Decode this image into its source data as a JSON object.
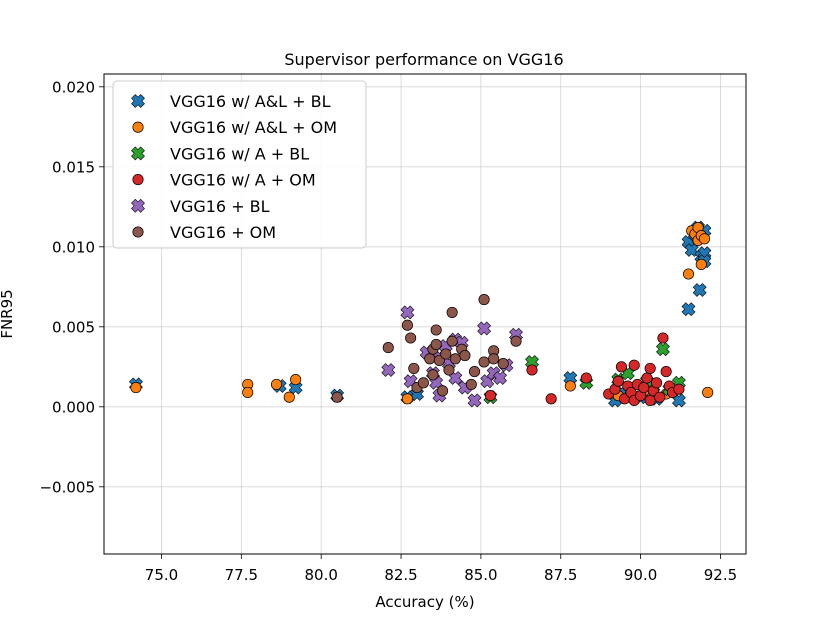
{
  "chart_data": {
    "type": "scatter",
    "title": "Supervisor performance on VGG16",
    "xlabel": "Accuracy (%)",
    "ylabel": "FNR95",
    "xlim": [
      73.2,
      93.3
    ],
    "ylim": [
      -0.0092,
      0.0208
    ],
    "xticks": [
      75.0,
      77.5,
      80.0,
      82.5,
      85.0,
      87.5,
      90.0,
      92.5
    ],
    "xtick_labels": [
      "75.0",
      "77.5",
      "80.0",
      "82.5",
      "85.0",
      "87.5",
      "90.0",
      "92.5"
    ],
    "yticks": [
      -0.005,
      0.0,
      0.005,
      0.01,
      0.015,
      0.02
    ],
    "ytick_labels": [
      "−0.005",
      "0.000",
      "0.005",
      "0.010",
      "0.015",
      "0.020"
    ],
    "grid": true,
    "legend_position": "top-left",
    "series": [
      {
        "name": "VGG16 w/ A&L + BL",
        "marker": "x",
        "color": "#1f77b4",
        "points": [
          [
            74.2,
            0.0014
          ],
          [
            78.7,
            0.0013
          ],
          [
            79.2,
            0.0012
          ],
          [
            80.5,
            0.0007
          ],
          [
            82.7,
            0.0006
          ],
          [
            83.0,
            0.0008
          ],
          [
            87.8,
            0.0018
          ],
          [
            89.2,
            0.0004
          ],
          [
            89.4,
            0.0009
          ],
          [
            90.0,
            0.0006
          ],
          [
            90.5,
            0.0005
          ],
          [
            91.2,
            0.0004
          ],
          [
            91.5,
            0.0061
          ],
          [
            91.5,
            0.0103
          ],
          [
            91.6,
            0.0098
          ],
          [
            91.7,
            0.0108
          ],
          [
            91.8,
            0.0112
          ],
          [
            91.85,
            0.0073
          ],
          [
            91.9,
            0.0094
          ],
          [
            92.0,
            0.011
          ],
          [
            92.0,
            0.0096
          ],
          [
            92.0,
            0.0091
          ]
        ]
      },
      {
        "name": "VGG16 w/ A&L + OM",
        "marker": "o",
        "color": "#ff7f0e",
        "points": [
          [
            74.2,
            0.0012
          ],
          [
            77.7,
            0.0014
          ],
          [
            77.7,
            0.0009
          ],
          [
            78.6,
            0.0014
          ],
          [
            79.0,
            0.0006
          ],
          [
            79.2,
            0.0017
          ],
          [
            82.7,
            0.0005
          ],
          [
            87.8,
            0.0013
          ],
          [
            89.3,
            0.0007
          ],
          [
            89.7,
            0.0012
          ],
          [
            90.2,
            0.001
          ],
          [
            90.8,
            0.0008
          ],
          [
            91.5,
            0.0083
          ],
          [
            91.6,
            0.011
          ],
          [
            91.7,
            0.0108
          ],
          [
            91.8,
            0.0112
          ],
          [
            91.8,
            0.0104
          ],
          [
            91.9,
            0.0107
          ],
          [
            91.9,
            0.0089
          ],
          [
            92.0,
            0.0105
          ],
          [
            92.1,
            0.0009
          ]
        ]
      },
      {
        "name": "VGG16 w/ A + BL",
        "marker": "x",
        "color": "#2ca02c",
        "points": [
          [
            85.3,
            0.0006
          ],
          [
            86.6,
            0.0028
          ],
          [
            88.3,
            0.0015
          ],
          [
            89.3,
            0.0017
          ],
          [
            89.6,
            0.0021
          ],
          [
            90.2,
            0.0016
          ],
          [
            90.4,
            0.0009
          ],
          [
            90.7,
            0.0036
          ],
          [
            90.9,
            0.0011
          ],
          [
            91.2,
            0.0015
          ]
        ]
      },
      {
        "name": "VGG16 w/ A + OM",
        "marker": "o",
        "color": "#d62728",
        "points": [
          [
            85.3,
            0.0007
          ],
          [
            86.6,
            0.0023
          ],
          [
            87.2,
            0.0005
          ],
          [
            88.3,
            0.0018
          ],
          [
            89.0,
            0.0008
          ],
          [
            89.2,
            0.0011
          ],
          [
            89.3,
            0.0016
          ],
          [
            89.4,
            0.0025
          ],
          [
            89.5,
            0.0005
          ],
          [
            89.6,
            0.0013
          ],
          [
            89.7,
            0.0009
          ],
          [
            89.8,
            0.0026
          ],
          [
            89.8,
            0.0004
          ],
          [
            89.9,
            0.0014
          ],
          [
            90.0,
            0.0007
          ],
          [
            90.1,
            0.0012
          ],
          [
            90.2,
            0.0018
          ],
          [
            90.3,
            0.0004
          ],
          [
            90.3,
            0.0024
          ],
          [
            90.4,
            0.001
          ],
          [
            90.5,
            0.0015
          ],
          [
            90.6,
            0.0006
          ],
          [
            90.7,
            0.0043
          ],
          [
            90.8,
            0.0022
          ],
          [
            90.9,
            0.0013
          ],
          [
            91.0,
            0.0009
          ],
          [
            91.2,
            0.0011
          ]
        ]
      },
      {
        "name": "VGG16 + BL",
        "marker": "x",
        "color": "#9467bd",
        "points": [
          [
            82.1,
            0.0023
          ],
          [
            82.7,
            0.0059
          ],
          [
            82.8,
            0.0016
          ],
          [
            83.3,
            0.0034
          ],
          [
            83.5,
            0.0021
          ],
          [
            83.6,
            0.0015
          ],
          [
            83.7,
            0.0031
          ],
          [
            83.7,
            0.0007
          ],
          [
            83.9,
            0.0038
          ],
          [
            84.0,
            0.0027
          ],
          [
            84.2,
            0.0042
          ],
          [
            84.2,
            0.0018
          ],
          [
            84.4,
            0.004
          ],
          [
            84.5,
            0.0012
          ],
          [
            84.8,
            0.0004
          ],
          [
            85.1,
            0.0049
          ],
          [
            85.2,
            0.0016
          ],
          [
            85.4,
            0.0021
          ],
          [
            85.6,
            0.0018
          ],
          [
            85.8,
            0.0026
          ],
          [
            86.1,
            0.0045
          ]
        ]
      },
      {
        "name": "VGG16 + OM",
        "marker": "o",
        "color": "#8c564b",
        "points": [
          [
            80.5,
            0.0006
          ],
          [
            82.1,
            0.0037
          ],
          [
            82.7,
            0.0051
          ],
          [
            82.8,
            0.0043
          ],
          [
            82.9,
            0.0024
          ],
          [
            83.0,
            0.0012
          ],
          [
            83.2,
            0.0015
          ],
          [
            83.4,
            0.003
          ],
          [
            83.5,
            0.0036
          ],
          [
            83.5,
            0.002
          ],
          [
            83.6,
            0.0048
          ],
          [
            83.6,
            0.0039
          ],
          [
            83.7,
            0.0029
          ],
          [
            83.8,
            0.001
          ],
          [
            83.9,
            0.0033
          ],
          [
            84.0,
            0.0023
          ],
          [
            84.1,
            0.0059
          ],
          [
            84.1,
            0.0041
          ],
          [
            84.2,
            0.003
          ],
          [
            84.4,
            0.0036
          ],
          [
            84.5,
            0.0032
          ],
          [
            84.7,
            0.0014
          ],
          [
            84.8,
            0.0022
          ],
          [
            85.1,
            0.0067
          ],
          [
            85.1,
            0.0028
          ],
          [
            85.4,
            0.0035
          ],
          [
            85.4,
            0.003
          ],
          [
            85.7,
            0.0027
          ],
          [
            86.1,
            0.0041
          ]
        ]
      }
    ]
  }
}
